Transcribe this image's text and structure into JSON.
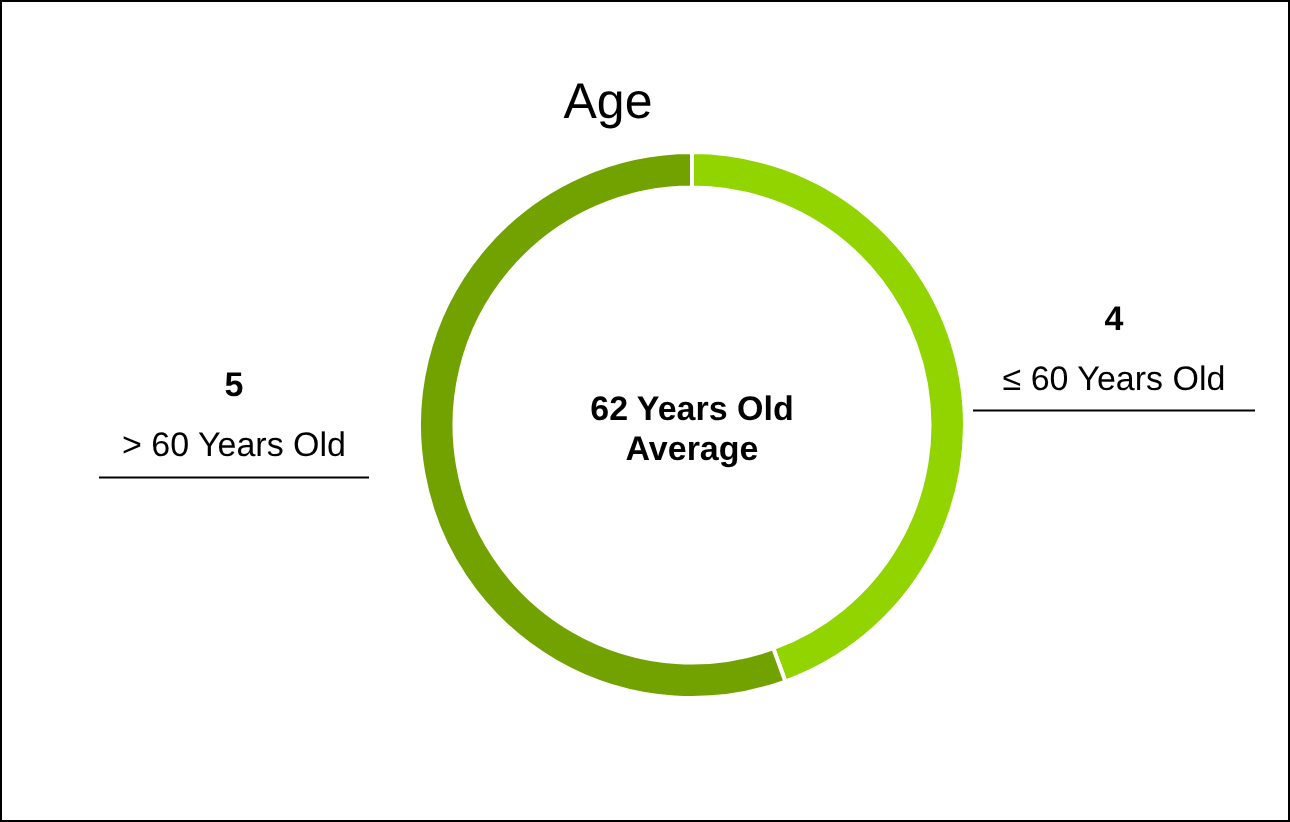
{
  "chart_data": {
    "type": "donut",
    "title": "Age",
    "categories": [
      "≤ 60 Years Old",
      "> 60 Years Old"
    ],
    "values": [
      4,
      5
    ],
    "colors": [
      "#92d400",
      "#72a200"
    ],
    "data_labels": true,
    "legend": false,
    "annotations": [
      "62 Years Old Average"
    ]
  }
}
